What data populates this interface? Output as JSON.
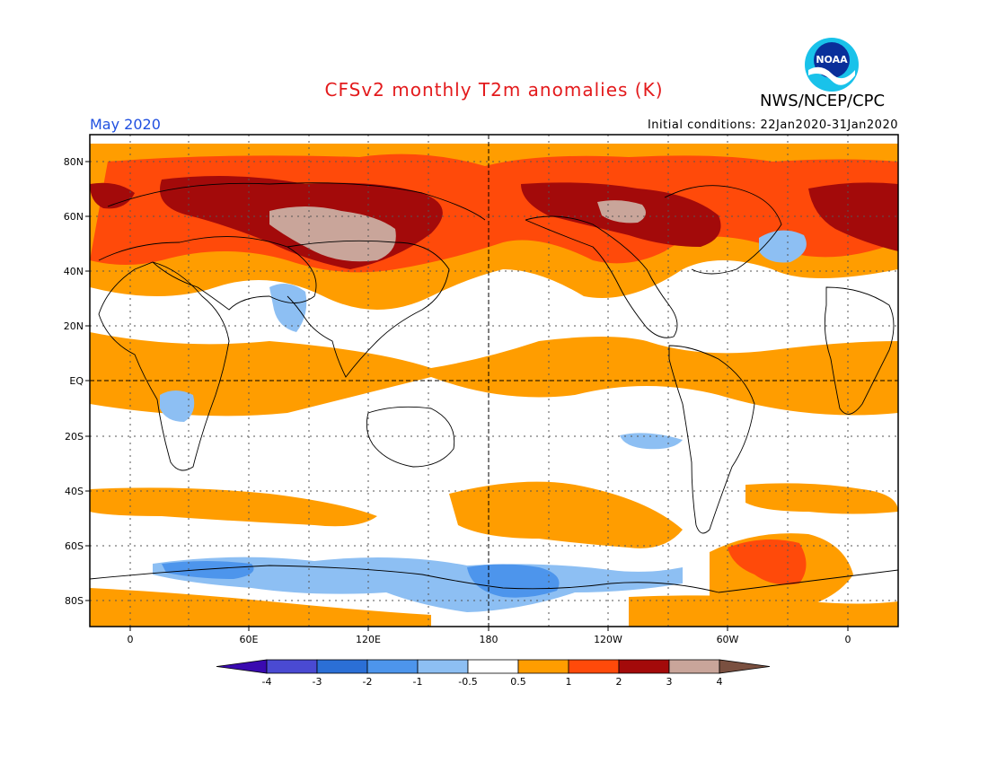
{
  "header": {
    "title": "CFSv2 monthly T2m anomalies (K)",
    "agency": "NWS/NCEP/CPC",
    "logo_text": "NOAA",
    "month": "May 2020",
    "initial_conditions": "Initial conditions: 22Jan2020-31Jan2020"
  },
  "axes": {
    "lat_labels": [
      "80N",
      "60N",
      "40N",
      "20N",
      "EQ",
      "20S",
      "40S",
      "60S",
      "80S"
    ],
    "lon_labels": [
      "0",
      "60E",
      "120E",
      "180",
      "120W",
      "60W",
      "0"
    ]
  },
  "colorbar": {
    "boundaries": [
      "-4",
      "-3",
      "-2",
      "-1",
      "-0.5",
      "0.5",
      "1",
      "2",
      "3",
      "4"
    ],
    "colors": [
      "#3a0ab0",
      "#4a4ad2",
      "#2b6fd6",
      "#4d95ec",
      "#8dbff3",
      "#ffffff",
      "#ff9d00",
      "#ff4a0a",
      "#a30a0a",
      "#c9a59a",
      "#7a5040"
    ]
  }
}
